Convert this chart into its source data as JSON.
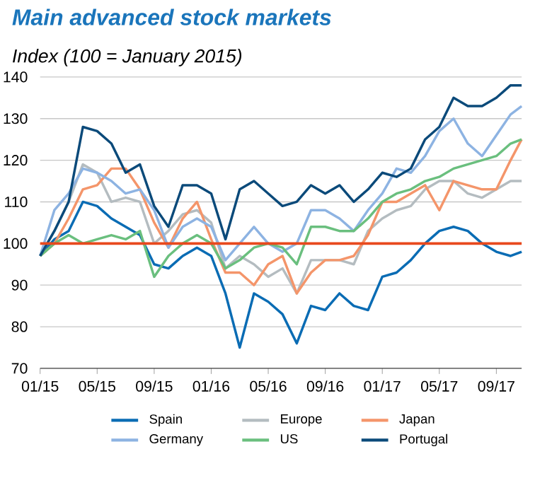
{
  "chart_data": {
    "type": "line",
    "title": "Main advanced stock markets",
    "subtitle": "Index (100 = January 2015)",
    "x": [
      "2015-01-01",
      "2015-02-01",
      "2015-03-01",
      "2015-04-01",
      "2015-05-01",
      "2015-06-01",
      "2015-07-01",
      "2015-08-01",
      "2015-09-01",
      "2015-10-01",
      "2015-11-01",
      "2015-12-01",
      "2016-01-01",
      "2016-02-01",
      "2016-03-01",
      "2016-04-01",
      "2016-05-01",
      "2016-06-01",
      "2016-07-01",
      "2016-08-01",
      "2016-09-01",
      "2016-10-01",
      "2016-11-01",
      "2016-12-01",
      "2017-01-01",
      "2017-02-01",
      "2017-03-01",
      "2017-04-01",
      "2017-05-01",
      "2017-06-01",
      "2017-07-01",
      "2017-08-01",
      "2017-09-01",
      "2017-10-01",
      "2017-10-25"
    ],
    "series": [
      {
        "name": "Spain",
        "color": "#0a6cb4",
        "values": [
          97,
          101,
          103,
          110,
          109,
          106,
          104,
          102,
          95,
          94,
          97,
          99,
          97,
          88,
          75,
          88,
          86,
          83,
          76,
          85,
          84,
          88,
          85,
          84,
          92,
          93,
          96,
          100,
          103,
          104,
          103,
          100,
          98,
          97,
          98
        ]
      },
      {
        "name": "Europe",
        "color": "#b4bcc0",
        "values": [
          97,
          103,
          110,
          119,
          117,
          110,
          111,
          110,
          100,
          103,
          107,
          108,
          105,
          94,
          97,
          95,
          92,
          94,
          88,
          96,
          96,
          96,
          95,
          103,
          106,
          108,
          109,
          113,
          115,
          115,
          112,
          111,
          113,
          115,
          115
        ]
      },
      {
        "name": "Japan",
        "color": "#f4956a",
        "values": [
          97,
          100,
          106,
          113,
          114,
          118,
          118,
          113,
          105,
          99,
          106,
          110,
          101,
          93,
          93,
          90,
          95,
          97,
          88,
          93,
          96,
          96,
          97,
          102,
          110,
          110,
          112,
          114,
          108,
          115,
          114,
          113,
          113,
          120,
          125
        ]
      },
      {
        "name": "Germany",
        "color": "#8db3e2",
        "values": [
          97,
          108,
          112,
          118,
          117,
          115,
          112,
          113,
          108,
          99,
          104,
          106,
          104,
          96,
          100,
          104,
          100,
          98,
          100,
          108,
          108,
          106,
          103,
          108,
          112,
          118,
          117,
          121,
          127,
          130,
          124,
          121,
          126,
          131,
          133
        ]
      },
      {
        "name": "US",
        "color": "#6abf7e",
        "values": [
          97,
          100,
          102,
          100,
          101,
          102,
          101,
          103,
          92,
          97,
          100,
          102,
          100,
          94,
          96,
          99,
          100,
          99,
          95,
          104,
          104,
          103,
          103,
          106,
          110,
          112,
          113,
          115,
          116,
          118,
          119,
          120,
          121,
          124,
          125
        ]
      },
      {
        "name": "Portugal",
        "color": "#0b4a7a",
        "values": [
          97,
          103,
          110,
          128,
          127,
          124,
          117,
          119,
          109,
          104,
          114,
          114,
          112,
          101,
          113,
          115,
          112,
          109,
          110,
          114,
          112,
          114,
          110,
          113,
          117,
          116,
          118,
          125,
          128,
          135,
          133,
          133,
          135,
          138,
          138
        ]
      }
    ],
    "xlim": [
      "2015-01-01",
      "2017-10-25"
    ],
    "xticks": [
      {
        "value": "2015-01-01",
        "label": "01/15"
      },
      {
        "value": "2015-05-01",
        "label": "05/15"
      },
      {
        "value": "2015-09-01",
        "label": "09/15"
      },
      {
        "value": "2016-01-01",
        "label": "01/16"
      },
      {
        "value": "2016-05-01",
        "label": "05/16"
      },
      {
        "value": "2016-09-01",
        "label": "09/16"
      },
      {
        "value": "2017-01-01",
        "label": "01/17"
      },
      {
        "value": "2017-05-01",
        "label": "05/17"
      },
      {
        "value": "2017-09-01",
        "label": "09/17"
      }
    ],
    "ylim": [
      70,
      140
    ],
    "yticks": [
      70,
      80,
      90,
      100,
      110,
      120,
      130,
      140
    ],
    "ref_lines": [
      {
        "axis": "y",
        "value": 100,
        "color": "#e8491d"
      }
    ],
    "grid": "y",
    "legend": "bottom",
    "marker": "none",
    "line_style": "solid"
  }
}
